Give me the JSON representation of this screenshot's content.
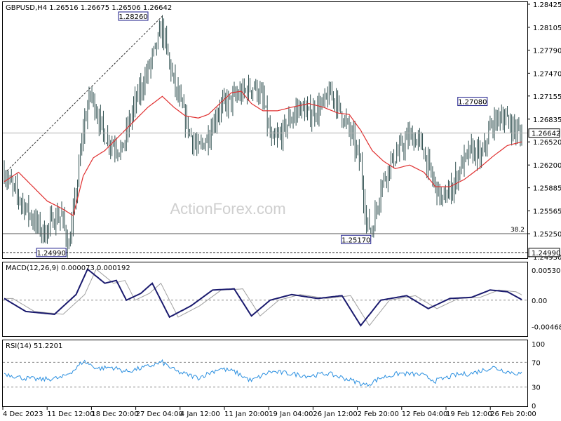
{
  "chart_data": {
    "type": "candlestick",
    "symbol_line": "GBPUSD,H4  1.26516 1.26675 1.26506 1.26642",
    "watermark": "ActionForex.com",
    "price_axis": {
      "ticks": [
        "1.28425",
        "1.28105",
        "1.27790",
        "1.27470",
        "1.27155",
        "1.26835",
        "1.26520",
        "1.26200",
        "1.25885",
        "1.25565",
        "1.25250",
        "1.24930"
      ],
      "ylim": [
        1.2493,
        1.28425
      ]
    },
    "current_price": "1.26642",
    "support_label": "1.24990",
    "annotations": [
      {
        "text": "1.28260",
        "price": 1.2826
      },
      {
        "text": "1.27080",
        "price": 1.2708
      },
      {
        "text": "1.25170",
        "price": 1.2517
      },
      {
        "text": "1.24990",
        "price": 1.2499
      }
    ],
    "fib_label": "38.2",
    "fib_level": 1.2525,
    "x_ticks": [
      "4 Dec 2023",
      "11 Dec 12:00",
      "18 Dec 20:00",
      "27 Dec 04:00",
      "4 Jan 12:00",
      "11 Jan 20:00",
      "19 Jan 04:00",
      "26 Jan 12:00",
      "2 Feb 20:00",
      "12 Feb 04:00",
      "19 Feb 12:00",
      "26 Feb 20:00"
    ],
    "price_keypoints": [
      [
        0,
        1.261
      ],
      [
        4,
        1.2595
      ],
      [
        12,
        1.257
      ],
      [
        20,
        1.2545
      ],
      [
        28,
        1.2525
      ],
      [
        34,
        1.2545
      ],
      [
        40,
        1.255
      ],
      [
        45,
        1.2505
      ],
      [
        50,
        1.258
      ],
      [
        55,
        1.267
      ],
      [
        60,
        1.272
      ],
      [
        65,
        1.269
      ],
      [
        70,
        1.266
      ],
      [
        75,
        1.265
      ],
      [
        82,
        1.264
      ],
      [
        90,
        1.27
      ],
      [
        98,
        1.274
      ],
      [
        105,
        1.278
      ],
      [
        110,
        1.281
      ],
      [
        115,
        1.276
      ],
      [
        120,
        1.272
      ],
      [
        125,
        1.269
      ],
      [
        130,
        1.266
      ],
      [
        135,
        1.264
      ],
      [
        142,
        1.266
      ],
      [
        150,
        1.27
      ],
      [
        158,
        1.271
      ],
      [
        166,
        1.272
      ],
      [
        174,
        1.273
      ],
      [
        180,
        1.271
      ],
      [
        186,
        1.265
      ],
      [
        192,
        1.266
      ],
      [
        198,
        1.268
      ],
      [
        205,
        1.27
      ],
      [
        212,
        1.269
      ],
      [
        220,
        1.27
      ],
      [
        228,
        1.272
      ],
      [
        235,
        1.269
      ],
      [
        242,
        1.266
      ],
      [
        248,
        1.262
      ],
      [
        252,
        1.254
      ],
      [
        256,
        1.253
      ],
      [
        262,
        1.259
      ],
      [
        268,
        1.262
      ],
      [
        275,
        1.264
      ],
      [
        282,
        1.266
      ],
      [
        290,
        1.265
      ],
      [
        298,
        1.26
      ],
      [
        305,
        1.257
      ],
      [
        312,
        1.259
      ],
      [
        318,
        1.262
      ],
      [
        325,
        1.264
      ],
      [
        332,
        1.263
      ],
      [
        338,
        1.267
      ],
      [
        345,
        1.269
      ],
      [
        350,
        1.268
      ],
      [
        355,
        1.267
      ],
      [
        360,
        1.266
      ]
    ],
    "ma_keypoints": [
      [
        0,
        1.2597
      ],
      [
        10,
        1.261
      ],
      [
        20,
        1.259
      ],
      [
        30,
        1.257
      ],
      [
        40,
        1.256
      ],
      [
        48,
        1.255
      ],
      [
        55,
        1.2605
      ],
      [
        62,
        1.263
      ],
      [
        70,
        1.264
      ],
      [
        80,
        1.266
      ],
      [
        90,
        1.268
      ],
      [
        100,
        1.27
      ],
      [
        110,
        1.2715
      ],
      [
        118,
        1.27
      ],
      [
        126,
        1.2688
      ],
      [
        135,
        1.2685
      ],
      [
        142,
        1.269
      ],
      [
        150,
        1.2705
      ],
      [
        158,
        1.272
      ],
      [
        165,
        1.2722
      ],
      [
        172,
        1.2705
      ],
      [
        180,
        1.2695
      ],
      [
        190,
        1.2695
      ],
      [
        200,
        1.27
      ],
      [
        212,
        1.2705
      ],
      [
        222,
        1.27
      ],
      [
        232,
        1.2692
      ],
      [
        240,
        1.269
      ],
      [
        248,
        1.2668
      ],
      [
        256,
        1.264
      ],
      [
        264,
        1.2625
      ],
      [
        272,
        1.2615
      ],
      [
        282,
        1.262
      ],
      [
        292,
        1.261
      ],
      [
        300,
        1.259
      ],
      [
        310,
        1.259
      ],
      [
        320,
        1.26
      ],
      [
        330,
        1.2615
      ],
      [
        340,
        1.2632
      ],
      [
        350,
        1.2647
      ],
      [
        360,
        1.2652
      ]
    ],
    "macd": {
      "label": "MACD(12,26,9) 0.000073 0.000192",
      "ticks": [
        "0.00530",
        "0.00",
        "-0.004685"
      ],
      "ylim": [
        -0.006,
        0.0062
      ],
      "keypoints": [
        [
          0,
          0.0003
        ],
        [
          15,
          -0.002
        ],
        [
          35,
          -0.0025
        ],
        [
          50,
          0.001
        ],
        [
          58,
          0.0055
        ],
        [
          70,
          0.003
        ],
        [
          78,
          0.0035
        ],
        [
          85,
          0.0
        ],
        [
          95,
          0.0012
        ],
        [
          103,
          0.003
        ],
        [
          115,
          -0.003
        ],
        [
          130,
          -0.001
        ],
        [
          145,
          0.0018
        ],
        [
          160,
          0.002
        ],
        [
          172,
          -0.0028
        ],
        [
          185,
          0.0
        ],
        [
          200,
          0.001
        ],
        [
          218,
          0.0003
        ],
        [
          235,
          0.0008
        ],
        [
          248,
          -0.0045
        ],
        [
          262,
          0.0
        ],
        [
          280,
          0.0008
        ],
        [
          295,
          -0.0015
        ],
        [
          310,
          0.0003
        ],
        [
          325,
          0.0005
        ],
        [
          338,
          0.0018
        ],
        [
          350,
          0.0015
        ],
        [
          360,
          0.0001
        ]
      ]
    },
    "rsi": {
      "label": "RSI(14) 51.2201",
      "ticks": [
        "100",
        "70",
        "30",
        "0"
      ],
      "ylim": [
        0,
        100
      ],
      "keypoints": [
        [
          0,
          52
        ],
        [
          12,
          45
        ],
        [
          25,
          42
        ],
        [
          40,
          45
        ],
        [
          50,
          60
        ],
        [
          55,
          72
        ],
        [
          65,
          60
        ],
        [
          75,
          62
        ],
        [
          85,
          55
        ],
        [
          98,
          62
        ],
        [
          110,
          70
        ],
        [
          120,
          55
        ],
        [
          135,
          45
        ],
        [
          150,
          60
        ],
        [
          160,
          55
        ],
        [
          172,
          40
        ],
        [
          185,
          55
        ],
        [
          198,
          52
        ],
        [
          212,
          48
        ],
        [
          225,
          52
        ],
        [
          240,
          42
        ],
        [
          252,
          33
        ],
        [
          262,
          45
        ],
        [
          275,
          52
        ],
        [
          290,
          50
        ],
        [
          300,
          40
        ],
        [
          315,
          50
        ],
        [
          325,
          52
        ],
        [
          340,
          62
        ],
        [
          350,
          55
        ],
        [
          360,
          51
        ]
      ]
    },
    "colors": {
      "candle": "#2f4f4f",
      "ma": "#e03030",
      "macd": "#1a1a6e",
      "signal": "#a0a0a0",
      "rsi": "#2a8fe0",
      "annotation_border": "#1a1a8a",
      "grid_dash": "#888888"
    }
  }
}
